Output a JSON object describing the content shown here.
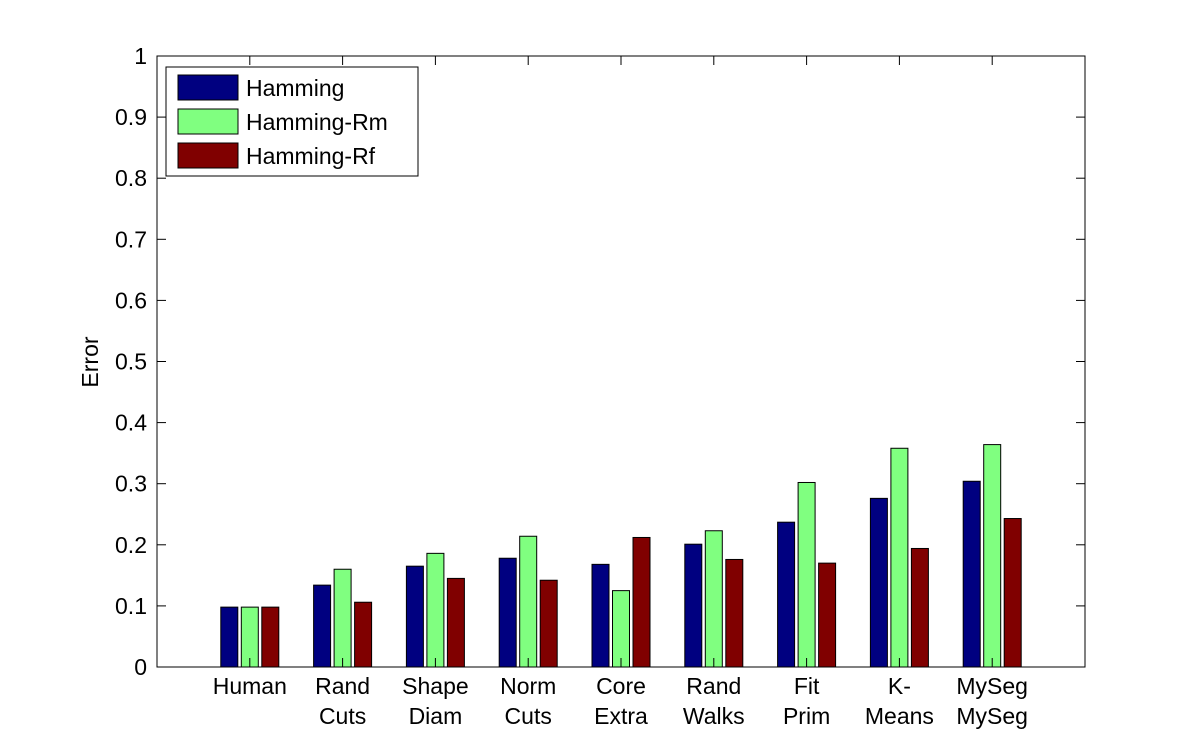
{
  "chart_data": {
    "type": "bar",
    "title": "",
    "xlabel": "",
    "ylabel": "Error",
    "ylim": [
      0,
      1
    ],
    "yticks": [
      "0",
      "0.1",
      "0.2",
      "0.3",
      "0.4",
      "0.5",
      "0.6",
      "0.7",
      "0.8",
      "0.9",
      "1"
    ],
    "grid": false,
    "legend_position": "top-left",
    "categories": [
      [
        "Human"
      ],
      [
        "Rand",
        "Cuts"
      ],
      [
        "Shape",
        "Diam"
      ],
      [
        "Norm",
        "Cuts"
      ],
      [
        "Core",
        "Extra"
      ],
      [
        "Rand",
        "Walks"
      ],
      [
        "Fit",
        "Prim"
      ],
      [
        "K-",
        "Means"
      ],
      [
        "MySeg",
        "MySeg"
      ]
    ],
    "series": [
      {
        "name": "Hamming",
        "color": "#000080",
        "values": [
          0.098,
          0.134,
          0.165,
          0.178,
          0.168,
          0.201,
          0.237,
          0.276,
          0.304
        ]
      },
      {
        "name": "Hamming-Rm",
        "color": "#80ff80",
        "values": [
          0.098,
          0.16,
          0.186,
          0.214,
          0.125,
          0.223,
          0.302,
          0.358,
          0.364
        ]
      },
      {
        "name": "Hamming-Rf",
        "color": "#800000",
        "values": [
          0.098,
          0.106,
          0.145,
          0.142,
          0.212,
          0.176,
          0.17,
          0.194,
          0.243
        ]
      }
    ]
  }
}
